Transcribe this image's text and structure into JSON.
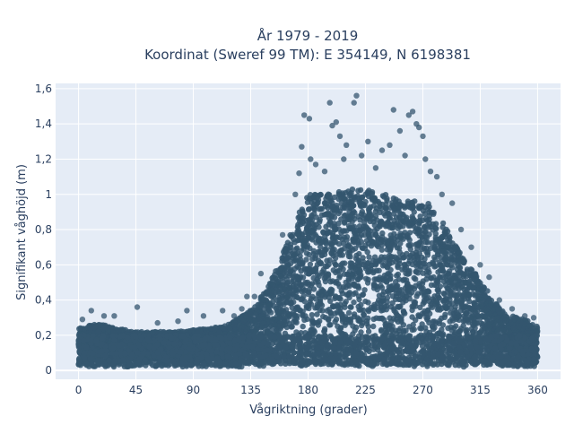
{
  "chart_data": {
    "type": "scatter",
    "title_lines": [
      "År 1979 - 2019",
      "Koordinat (Sweref 99 TM): E 354149, N 6198381"
    ],
    "xlabel": "Vågriktning (grader)",
    "ylabel": "Signifikant våghöjd (m)",
    "xlim": [
      -18,
      378
    ],
    "ylim": [
      -0.05,
      1.63
    ],
    "x_ticks": [
      0,
      45,
      90,
      135,
      180,
      225,
      270,
      315,
      360
    ],
    "x_tick_labels": [
      "0",
      "45",
      "90",
      "135",
      "180",
      "225",
      "270",
      "315",
      "360"
    ],
    "y_ticks": [
      0,
      0.2,
      0.4,
      0.6,
      0.8,
      1,
      1.2,
      1.4,
      1.6
    ],
    "y_tick_labels": [
      "0",
      "0,2",
      "0,4",
      "0,6",
      "0,8",
      "1",
      "1,2",
      "1,4",
      "1,6"
    ],
    "grid": true,
    "background_color": "#e5ecf6",
    "marker_color": "#34566f",
    "envelope": {
      "description_direction_deg": [
        0,
        10,
        20,
        30,
        40,
        45,
        60,
        75,
        90,
        105,
        120,
        130,
        140,
        150,
        160,
        170,
        180,
        195,
        210,
        225,
        240,
        255,
        265,
        275,
        285,
        295,
        305,
        315,
        325,
        335,
        345,
        350,
        360
      ],
      "typical_max_height_m": [
        0.24,
        0.26,
        0.26,
        0.24,
        0.23,
        0.22,
        0.22,
        0.22,
        0.23,
        0.24,
        0.27,
        0.32,
        0.38,
        0.5,
        0.66,
        0.85,
        1.0,
        1.0,
        1.03,
        1.03,
        1.0,
        0.97,
        0.96,
        0.95,
        0.85,
        0.72,
        0.6,
        0.52,
        0.4,
        0.32,
        0.3,
        0.29,
        0.25
      ]
    },
    "outliers": [
      {
        "x": 3,
        "y": 0.29
      },
      {
        "x": 10,
        "y": 0.34
      },
      {
        "x": 20,
        "y": 0.31
      },
      {
        "x": 28,
        "y": 0.31
      },
      {
        "x": 46,
        "y": 0.36
      },
      {
        "x": 62,
        "y": 0.27
      },
      {
        "x": 78,
        "y": 0.28
      },
      {
        "x": 85,
        "y": 0.34
      },
      {
        "x": 98,
        "y": 0.31
      },
      {
        "x": 113,
        "y": 0.34
      },
      {
        "x": 122,
        "y": 0.31
      },
      {
        "x": 128,
        "y": 0.35
      },
      {
        "x": 132,
        "y": 0.42
      },
      {
        "x": 138,
        "y": 0.42
      },
      {
        "x": 143,
        "y": 0.55
      },
      {
        "x": 160,
        "y": 0.77
      },
      {
        "x": 170,
        "y": 1.0
      },
      {
        "x": 173,
        "y": 1.12
      },
      {
        "x": 175,
        "y": 1.27
      },
      {
        "x": 177,
        "y": 1.45
      },
      {
        "x": 181,
        "y": 1.43
      },
      {
        "x": 182,
        "y": 1.2
      },
      {
        "x": 186,
        "y": 1.17
      },
      {
        "x": 193,
        "y": 1.13
      },
      {
        "x": 197,
        "y": 1.52
      },
      {
        "x": 199,
        "y": 1.39
      },
      {
        "x": 202,
        "y": 1.41
      },
      {
        "x": 205,
        "y": 1.33
      },
      {
        "x": 208,
        "y": 1.2
      },
      {
        "x": 210,
        "y": 1.28
      },
      {
        "x": 216,
        "y": 1.52
      },
      {
        "x": 218,
        "y": 1.56
      },
      {
        "x": 222,
        "y": 1.22
      },
      {
        "x": 227,
        "y": 1.3
      },
      {
        "x": 233,
        "y": 1.15
      },
      {
        "x": 238,
        "y": 1.25
      },
      {
        "x": 244,
        "y": 1.28
      },
      {
        "x": 247,
        "y": 1.48
      },
      {
        "x": 252,
        "y": 1.36
      },
      {
        "x": 256,
        "y": 1.22
      },
      {
        "x": 259,
        "y": 1.45
      },
      {
        "x": 262,
        "y": 1.47
      },
      {
        "x": 265,
        "y": 1.4
      },
      {
        "x": 267,
        "y": 1.38
      },
      {
        "x": 270,
        "y": 1.33
      },
      {
        "x": 272,
        "y": 1.2
      },
      {
        "x": 276,
        "y": 1.13
      },
      {
        "x": 281,
        "y": 1.1
      },
      {
        "x": 285,
        "y": 1.0
      },
      {
        "x": 293,
        "y": 0.95
      },
      {
        "x": 300,
        "y": 0.8
      },
      {
        "x": 308,
        "y": 0.7
      },
      {
        "x": 315,
        "y": 0.6
      },
      {
        "x": 322,
        "y": 0.53
      },
      {
        "x": 330,
        "y": 0.4
      },
      {
        "x": 340,
        "y": 0.35
      },
      {
        "x": 350,
        "y": 0.31
      },
      {
        "x": 357,
        "y": 0.3
      }
    ]
  }
}
